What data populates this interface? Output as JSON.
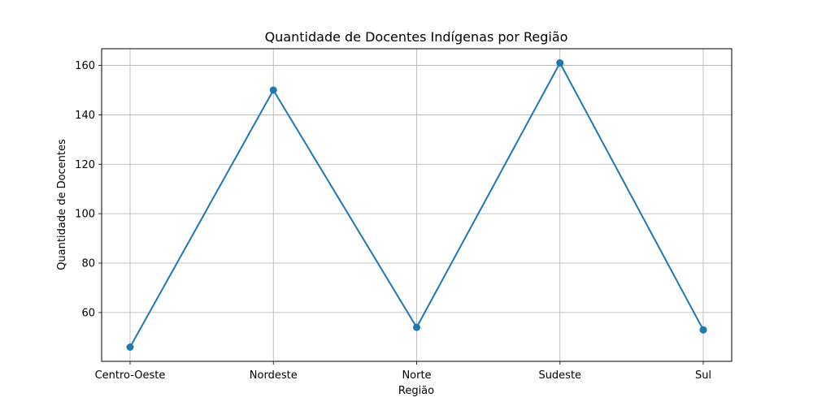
{
  "chart_data": {
    "type": "line",
    "title": "Quantidade de Docentes Indígenas por Região",
    "xlabel": "Região",
    "ylabel": "Quantidade de Docentes",
    "categories": [
      "Centro-Oeste",
      "Nordeste",
      "Norte",
      "Sudeste",
      "Sul"
    ],
    "series": [
      {
        "values": [
          46,
          150,
          54,
          161,
          53
        ],
        "color": "#1f77b4",
        "marker": "circle"
      }
    ],
    "ylim": [
      40.25,
      166.75
    ],
    "yticks": [
      60,
      80,
      100,
      120,
      140,
      160
    ],
    "grid": true,
    "legend": "none"
  }
}
